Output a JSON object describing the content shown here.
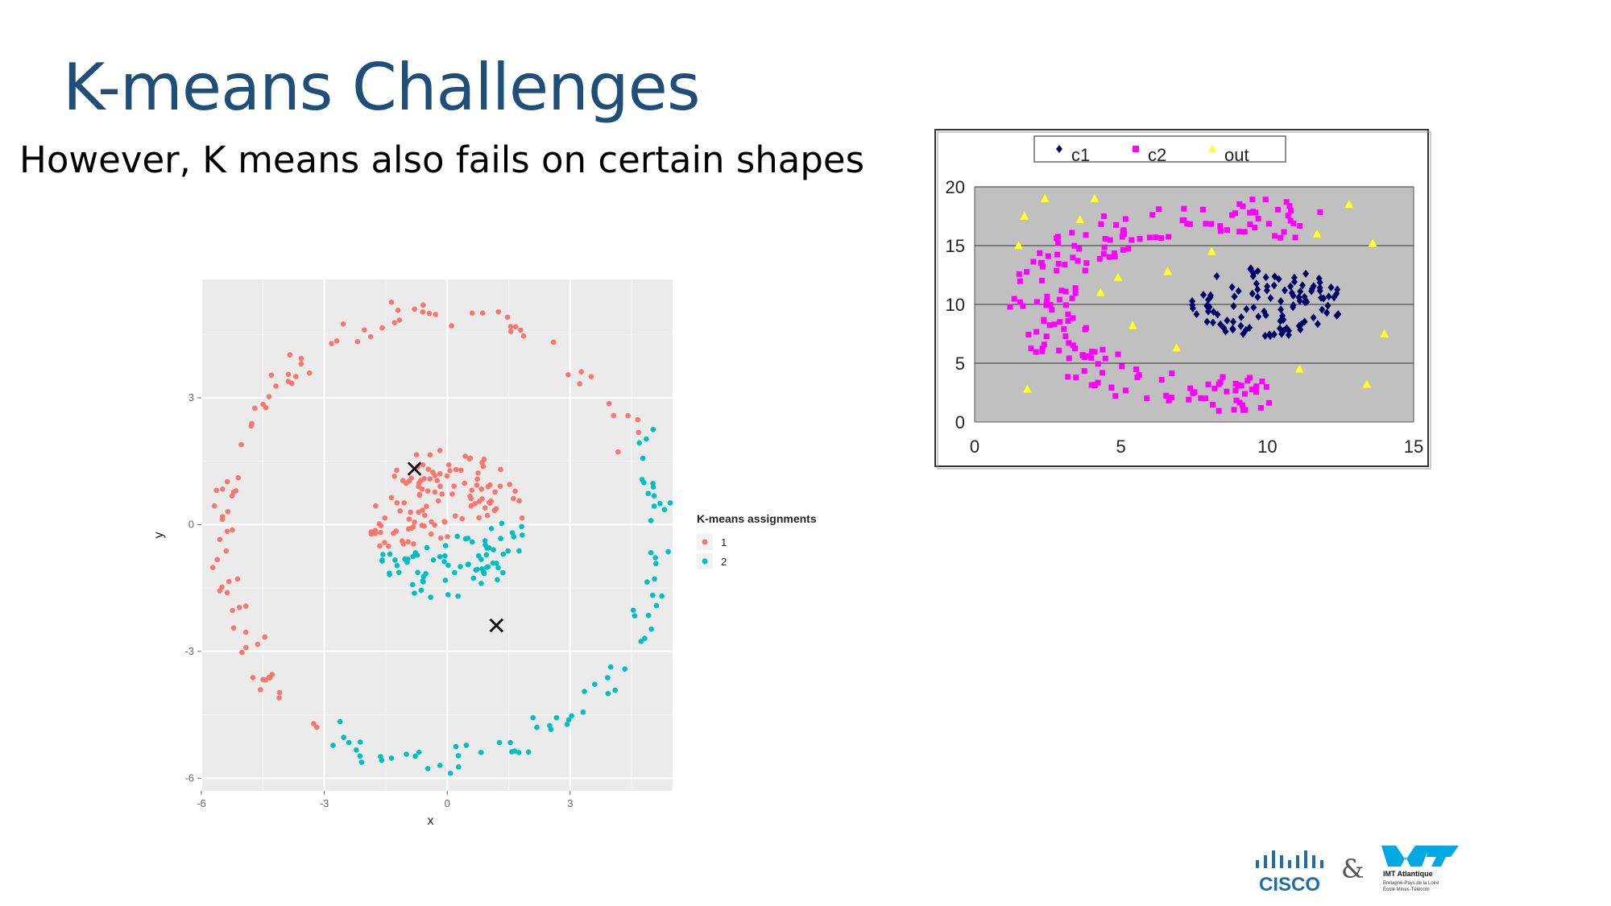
{
  "slide": {
    "title": "K-means Challenges",
    "subtitle": "However, K means also fails on certain shapes"
  },
  "footer": {
    "cisco_text": "CISCO",
    "ampersand": "&",
    "imt_name": "IMT Atlantique",
    "imt_sub1": "Bretagne-Pays de la Loire",
    "imt_sub2": "École Mines-Télécom"
  },
  "colors": {
    "title": "#1f4e79",
    "cluster1": "#f8766d",
    "cluster2": "#00bfc4",
    "c1": "#000066",
    "c2": "#ff00ff",
    "out": "#ffff33",
    "ggbg": "#ebebeb",
    "excelbg": "#c0c0c0"
  },
  "chart_data": [
    {
      "type": "scatter",
      "xlabel": "x",
      "ylabel": "y",
      "xlim": [
        -6,
        5.5
      ],
      "ylim": [
        -6.3,
        5.8
      ],
      "xticks": [
        "-6",
        "-3",
        "0",
        "3"
      ],
      "yticks": [
        "3",
        "0",
        "-3",
        "-6"
      ],
      "legend": {
        "title": "K-means assignments",
        "entries": [
          "1",
          "2"
        ],
        "position": "right"
      },
      "shapes": [
        {
          "kind": "ring",
          "radius": 5.3,
          "center": [
            0,
            0
          ],
          "count": 170
        },
        {
          "kind": "blob",
          "radius": 1.8,
          "center": [
            0,
            0
          ],
          "count": 190
        }
      ],
      "centroids": [
        {
          "x": -0.8,
          "y": 1.3
        },
        {
          "x": 1.2,
          "y": -2.4
        }
      ],
      "centroid_marker": "✕"
    },
    {
      "type": "scatter",
      "xlim": [
        0,
        15
      ],
      "ylim": [
        0,
        20
      ],
      "xticks": [
        "0",
        "5",
        "10",
        "15"
      ],
      "yticks": [
        "20",
        "15",
        "10",
        "5",
        "0"
      ],
      "gridlines_y": [
        5,
        10,
        15,
        20
      ],
      "legend": {
        "entries": [
          "c1",
          "c2",
          "out"
        ],
        "position": "top"
      },
      "shapes": [
        {
          "name": "c1",
          "kind": "ellipse",
          "center": [
            10.0,
            10.2
          ],
          "rx": 2.7,
          "ry": 3.6,
          "count": 110,
          "marker": "diamond"
        },
        {
          "name": "c2",
          "kind": "arc",
          "center": [
            8.5,
            10
          ],
          "radius": 7.3,
          "start_deg": 60,
          "end_deg": 290,
          "count": 200,
          "marker": "square"
        }
      ],
      "out_points": [
        [
          1.5,
          15
        ],
        [
          1.7,
          17.5
        ],
        [
          2.4,
          19
        ],
        [
          4.1,
          19
        ],
        [
          3.6,
          17.2
        ],
        [
          4.3,
          11
        ],
        [
          4.9,
          12.3
        ],
        [
          5.4,
          8.2
        ],
        [
          6.6,
          12.8
        ],
        [
          6.9,
          6.3
        ],
        [
          8.1,
          14.5
        ],
        [
          11.1,
          4.5
        ],
        [
          11.7,
          16
        ],
        [
          12.8,
          18.5
        ],
        [
          13.6,
          15.2
        ],
        [
          14.0,
          7.5
        ],
        [
          13.4,
          3.2
        ],
        [
          1.8,
          2.8
        ]
      ],
      "out_marker": "triangle"
    }
  ]
}
